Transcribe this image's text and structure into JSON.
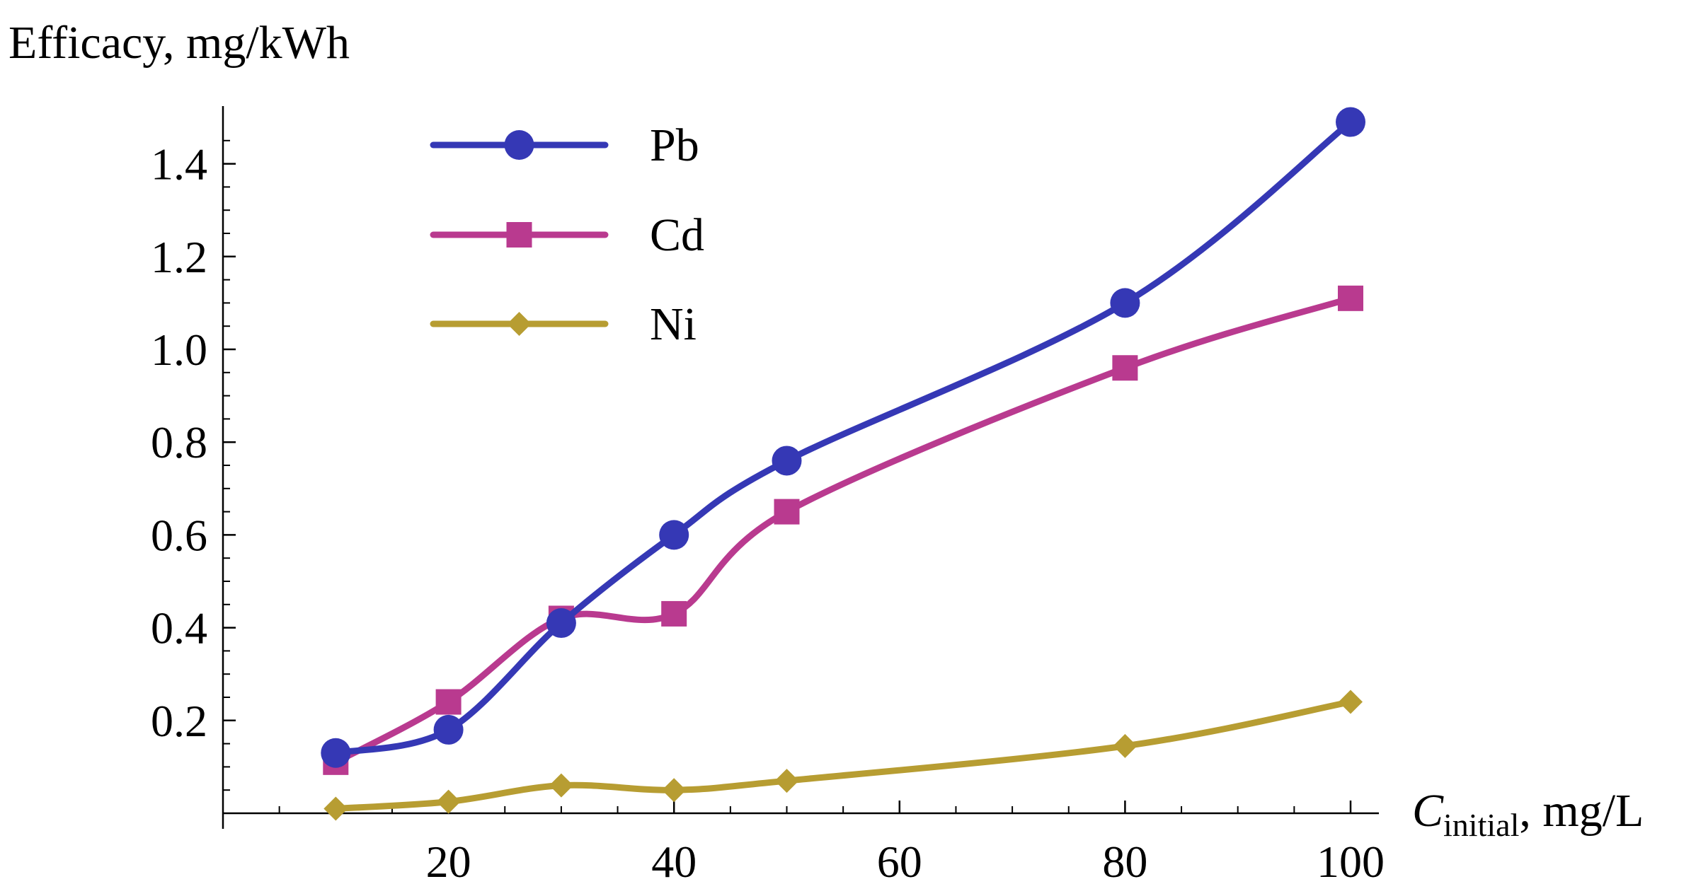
{
  "chart_data": {
    "type": "line",
    "title": "",
    "ylabel": "Efficacy, mg/kWh",
    "xlabel": {
      "symbol": "C",
      "subscript": "initial",
      "unit": ", mg/L"
    },
    "x": [
      10,
      20,
      30,
      40,
      50,
      80,
      100
    ],
    "xlim": [
      0,
      102
    ],
    "ylim": [
      0,
      1.52
    ],
    "x_ticks": [
      20,
      40,
      60,
      80,
      100
    ],
    "x_tick_labels": [
      "20",
      "40",
      "60",
      "80",
      "100"
    ],
    "y_ticks": [
      0.2,
      0.4,
      0.6,
      0.8,
      1.0,
      1.2,
      1.4
    ],
    "y_tick_labels": [
      "0.2",
      "0.4",
      "0.6",
      "0.8",
      "1.0",
      "1.2",
      "1.4"
    ],
    "legend_position": "top-left",
    "series": [
      {
        "name": "Pb",
        "marker": "circle",
        "color": "#3538b5",
        "values": [
          0.13,
          0.18,
          0.41,
          0.6,
          0.76,
          1.1,
          1.49
        ]
      },
      {
        "name": "Cd",
        "marker": "square",
        "color": "#b93a8f",
        "values": [
          0.11,
          0.24,
          0.42,
          0.43,
          0.65,
          0.96,
          1.11
        ]
      },
      {
        "name": "Ni",
        "marker": "diamond",
        "color": "#b79d32",
        "values": [
          0.01,
          0.025,
          0.06,
          0.05,
          0.07,
          0.145,
          0.24
        ]
      }
    ]
  }
}
